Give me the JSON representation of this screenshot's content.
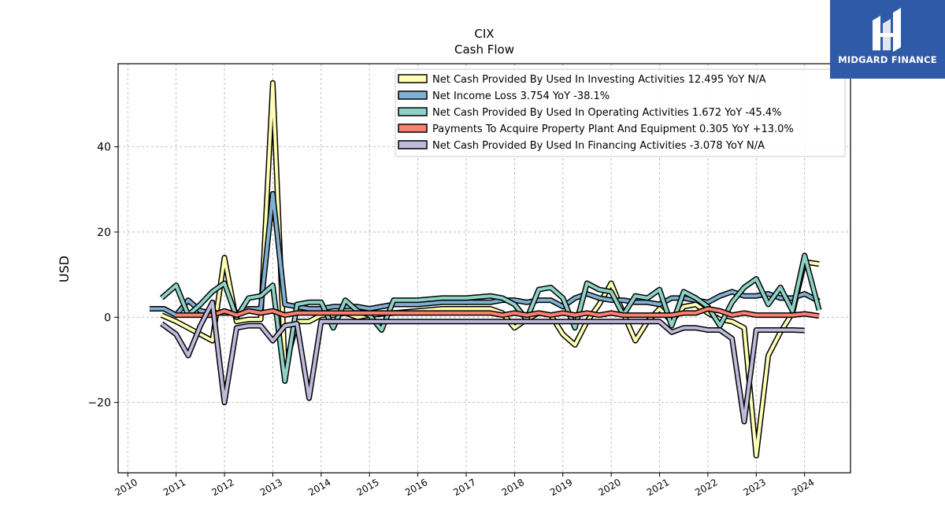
{
  "chart_data": {
    "type": "line",
    "title": "CIX",
    "subtitle": "Cash Flow",
    "ylabel": "USD",
    "xlabel": "",
    "xlim": [
      2009.8,
      2024.95
    ],
    "ylim": [
      -36.5,
      59.5
    ],
    "yticks": [
      -20,
      0,
      20,
      40
    ],
    "xticks": [
      2010,
      2011,
      2012,
      2013,
      2014,
      2015,
      2016,
      2017,
      2018,
      2019,
      2020,
      2021,
      2022,
      2023,
      2024
    ],
    "grid": true,
    "legend_position": "top-right",
    "series": [
      {
        "name": "Net Cash Provided By Used In Investing Activities  12.495 YoY N/A",
        "color": "#ffffb3",
        "points": [
          [
            2010.7,
            0.5
          ],
          [
            2011.0,
            -1.0
          ],
          [
            2011.25,
            -2.5
          ],
          [
            2011.5,
            -4.0
          ],
          [
            2011.75,
            -5.5
          ],
          [
            2012.0,
            14.0
          ],
          [
            2012.25,
            -1.0
          ],
          [
            2012.5,
            -0.5
          ],
          [
            2012.75,
            -0.5
          ],
          [
            2013.0,
            55.0
          ],
          [
            2013.25,
            -12.0
          ],
          [
            2013.5,
            -1.0
          ],
          [
            2013.75,
            -1.0
          ],
          [
            2014.0,
            0.5
          ],
          [
            2014.25,
            0.5
          ],
          [
            2014.5,
            1.0
          ],
          [
            2014.75,
            0.0
          ],
          [
            2015.0,
            0.5
          ],
          [
            2015.5,
            1.0
          ],
          [
            2016.0,
            1.5
          ],
          [
            2016.5,
            2.0
          ],
          [
            2017.0,
            2.0
          ],
          [
            2017.5,
            2.0
          ],
          [
            2017.75,
            1.0
          ],
          [
            2018.0,
            -2.5
          ],
          [
            2018.25,
            -0.5
          ],
          [
            2018.5,
            1.0
          ],
          [
            2018.75,
            0.5
          ],
          [
            2019.0,
            -4.0
          ],
          [
            2019.25,
            -6.5
          ],
          [
            2019.5,
            -1.0
          ],
          [
            2019.75,
            3.0
          ],
          [
            2020.0,
            8.0
          ],
          [
            2020.25,
            1.0
          ],
          [
            2020.5,
            -5.5
          ],
          [
            2020.75,
            -1.0
          ],
          [
            2021.0,
            2.0
          ],
          [
            2021.25,
            -1.0
          ],
          [
            2021.5,
            2.5
          ],
          [
            2021.75,
            3.0
          ],
          [
            2022.0,
            1.0
          ],
          [
            2022.25,
            -0.5
          ],
          [
            2022.5,
            -1.0
          ],
          [
            2022.75,
            -2.5
          ],
          [
            2023.0,
            -32.5
          ],
          [
            2023.25,
            -9.0
          ],
          [
            2023.5,
            -3.5
          ],
          [
            2023.75,
            1.0
          ],
          [
            2024.0,
            13.0
          ],
          [
            2024.3,
            12.5
          ]
        ]
      },
      {
        "name": "Net Income Loss  3.754 YoY -38.1%",
        "color": "#80b1d3",
        "points": [
          [
            2010.45,
            2.0
          ],
          [
            2010.75,
            2.0
          ],
          [
            2011.0,
            0.5
          ],
          [
            2011.25,
            4.0
          ],
          [
            2011.5,
            1.5
          ],
          [
            2011.75,
            1.0
          ],
          [
            2012.0,
            1.0
          ],
          [
            2012.25,
            1.0
          ],
          [
            2012.5,
            2.0
          ],
          [
            2012.75,
            2.0
          ],
          [
            2013.0,
            29.0
          ],
          [
            2013.25,
            3.0
          ],
          [
            2013.5,
            2.5
          ],
          [
            2013.75,
            2.0
          ],
          [
            2014.0,
            2.0
          ],
          [
            2014.25,
            2.5
          ],
          [
            2014.5,
            2.5
          ],
          [
            2014.75,
            2.5
          ],
          [
            2015.0,
            2.0
          ],
          [
            2015.5,
            3.0
          ],
          [
            2016.0,
            3.0
          ],
          [
            2016.5,
            3.5
          ],
          [
            2017.0,
            3.5
          ],
          [
            2017.5,
            3.5
          ],
          [
            2017.75,
            4.0
          ],
          [
            2018.0,
            4.0
          ],
          [
            2018.25,
            3.5
          ],
          [
            2018.5,
            4.0
          ],
          [
            2018.75,
            4.0
          ],
          [
            2019.0,
            2.5
          ],
          [
            2019.25,
            4.5
          ],
          [
            2019.5,
            5.5
          ],
          [
            2019.75,
            4.5
          ],
          [
            2020.0,
            4.0
          ],
          [
            2020.25,
            4.0
          ],
          [
            2020.5,
            3.5
          ],
          [
            2020.75,
            3.5
          ],
          [
            2021.0,
            3.0
          ],
          [
            2021.25,
            4.5
          ],
          [
            2021.5,
            4.5
          ],
          [
            2021.75,
            4.0
          ],
          [
            2022.0,
            3.5
          ],
          [
            2022.25,
            5.0
          ],
          [
            2022.5,
            6.0
          ],
          [
            2022.75,
            5.0
          ],
          [
            2023.0,
            5.0
          ],
          [
            2023.25,
            5.5
          ],
          [
            2023.5,
            4.5
          ],
          [
            2023.75,
            4.5
          ],
          [
            2024.0,
            5.5
          ],
          [
            2024.3,
            3.754
          ]
        ]
      },
      {
        "name": "Net Cash Provided By Used In Operating Activities  1.672 YoY -45.4%",
        "color": "#8dd3c7",
        "points": [
          [
            2010.7,
            4.5
          ],
          [
            2011.0,
            7.5
          ],
          [
            2011.25,
            0.5
          ],
          [
            2011.5,
            3.0
          ],
          [
            2011.75,
            6.0
          ],
          [
            2012.0,
            8.0
          ],
          [
            2012.25,
            0.0
          ],
          [
            2012.5,
            4.5
          ],
          [
            2012.75,
            5.0
          ],
          [
            2013.0,
            7.5
          ],
          [
            2013.25,
            -15.0
          ],
          [
            2013.5,
            3.0
          ],
          [
            2013.75,
            3.5
          ],
          [
            2014.0,
            3.5
          ],
          [
            2014.25,
            -2.5
          ],
          [
            2014.5,
            4.0
          ],
          [
            2014.75,
            1.5
          ],
          [
            2015.0,
            0.5
          ],
          [
            2015.25,
            -3.0
          ],
          [
            2015.5,
            4.0
          ],
          [
            2016.0,
            4.0
          ],
          [
            2016.5,
            4.5
          ],
          [
            2017.0,
            4.5
          ],
          [
            2017.5,
            5.0
          ],
          [
            2017.75,
            4.5
          ],
          [
            2018.0,
            3.0
          ],
          [
            2018.25,
            -0.5
          ],
          [
            2018.5,
            6.5
          ],
          [
            2018.75,
            7.0
          ],
          [
            2019.0,
            4.5
          ],
          [
            2019.25,
            -2.5
          ],
          [
            2019.5,
            8.0
          ],
          [
            2019.75,
            6.5
          ],
          [
            2020.0,
            6.0
          ],
          [
            2020.25,
            0.5
          ],
          [
            2020.5,
            5.0
          ],
          [
            2020.75,
            4.5
          ],
          [
            2021.0,
            6.5
          ],
          [
            2021.25,
            -2.0
          ],
          [
            2021.5,
            6.0
          ],
          [
            2021.75,
            4.5
          ],
          [
            2022.0,
            2.5
          ],
          [
            2022.25,
            -2.0
          ],
          [
            2022.5,
            3.5
          ],
          [
            2022.75,
            7.0
          ],
          [
            2023.0,
            9.0
          ],
          [
            2023.25,
            3.0
          ],
          [
            2023.5,
            7.0
          ],
          [
            2023.75,
            1.5
          ],
          [
            2024.0,
            14.5
          ],
          [
            2024.3,
            1.672
          ]
        ]
      },
      {
        "name": "Payments To Acquire Property Plant And Equipment  0.305 YoY +13.0%",
        "color": "#fb8072",
        "points": [
          [
            2011.0,
            0.5
          ],
          [
            2011.25,
            0.5
          ],
          [
            2011.5,
            0.5
          ],
          [
            2011.75,
            0.5
          ],
          [
            2012.0,
            1.5
          ],
          [
            2012.25,
            0.5
          ],
          [
            2012.5,
            1.5
          ],
          [
            2012.75,
            1.0
          ],
          [
            2013.0,
            1.5
          ],
          [
            2013.25,
            0.5
          ],
          [
            2013.5,
            1.0
          ],
          [
            2013.75,
            1.0
          ],
          [
            2014.0,
            1.0
          ],
          [
            2014.25,
            1.0
          ],
          [
            2014.5,
            1.0
          ],
          [
            2014.75,
            1.0
          ],
          [
            2015.0,
            1.0
          ],
          [
            2015.5,
            1.0
          ],
          [
            2016.0,
            1.0
          ],
          [
            2016.5,
            1.0
          ],
          [
            2017.0,
            1.0
          ],
          [
            2017.5,
            1.0
          ],
          [
            2017.75,
            0.5
          ],
          [
            2018.0,
            1.0
          ],
          [
            2018.25,
            0.5
          ],
          [
            2018.5,
            1.0
          ],
          [
            2018.75,
            0.5
          ],
          [
            2019.0,
            1.0
          ],
          [
            2019.25,
            0.5
          ],
          [
            2019.5,
            1.0
          ],
          [
            2019.75,
            0.5
          ],
          [
            2020.0,
            1.0
          ],
          [
            2020.25,
            0.5
          ],
          [
            2020.5,
            0.5
          ],
          [
            2020.75,
            0.5
          ],
          [
            2021.0,
            0.5
          ],
          [
            2021.25,
            0.5
          ],
          [
            2021.5,
            1.0
          ],
          [
            2021.75,
            1.0
          ],
          [
            2022.0,
            2.0
          ],
          [
            2022.25,
            1.5
          ],
          [
            2022.5,
            0.5
          ],
          [
            2022.75,
            1.0
          ],
          [
            2023.0,
            0.5
          ],
          [
            2023.25,
            0.5
          ],
          [
            2023.5,
            0.5
          ],
          [
            2023.75,
            0.5
          ],
          [
            2024.0,
            0.8
          ],
          [
            2024.3,
            0.305
          ]
        ]
      },
      {
        "name": "Net Cash Provided By Used In Financing Activities  -3.078 YoY N/A",
        "color": "#bebada",
        "points": [
          [
            2010.7,
            -1.5
          ],
          [
            2011.0,
            -4.0
          ],
          [
            2011.25,
            -9.0
          ],
          [
            2011.5,
            -2.0
          ],
          [
            2011.75,
            3.5
          ],
          [
            2012.0,
            -20.0
          ],
          [
            2012.25,
            -2.5
          ],
          [
            2012.5,
            -2.0
          ],
          [
            2012.75,
            -2.0
          ],
          [
            2013.0,
            -5.5
          ],
          [
            2013.25,
            -2.0
          ],
          [
            2013.5,
            -1.5
          ],
          [
            2013.75,
            -19.0
          ],
          [
            2014.0,
            -1.0
          ],
          [
            2014.25,
            -1.0
          ],
          [
            2014.5,
            -1.0
          ],
          [
            2014.75,
            -1.0
          ],
          [
            2015.0,
            -1.0
          ],
          [
            2015.5,
            -1.0
          ],
          [
            2016.0,
            -1.0
          ],
          [
            2016.5,
            -1.0
          ],
          [
            2017.0,
            -1.0
          ],
          [
            2017.5,
            -1.0
          ],
          [
            2017.75,
            -1.0
          ],
          [
            2018.0,
            -1.0
          ],
          [
            2018.25,
            -1.0
          ],
          [
            2018.5,
            -1.0
          ],
          [
            2018.75,
            -1.0
          ],
          [
            2019.0,
            -1.0
          ],
          [
            2019.25,
            -1.0
          ],
          [
            2019.5,
            -1.0
          ],
          [
            2019.75,
            -1.0
          ],
          [
            2020.0,
            -1.0
          ],
          [
            2020.25,
            -1.0
          ],
          [
            2020.5,
            -1.0
          ],
          [
            2020.75,
            -1.0
          ],
          [
            2021.0,
            -1.0
          ],
          [
            2021.25,
            -3.5
          ],
          [
            2021.5,
            -2.5
          ],
          [
            2021.75,
            -2.5
          ],
          [
            2022.0,
            -3.0
          ],
          [
            2022.25,
            -3.0
          ],
          [
            2022.5,
            -5.0
          ],
          [
            2022.75,
            -24.5
          ],
          [
            2023.0,
            -3.0
          ],
          [
            2023.25,
            -3.0
          ],
          [
            2023.5,
            -3.0
          ],
          [
            2023.75,
            -3.0
          ],
          [
            2024.0,
            -3.078
          ]
        ]
      }
    ]
  },
  "logo": {
    "text": "MIDGARD FINANCE",
    "color": "#2f5aa8"
  }
}
